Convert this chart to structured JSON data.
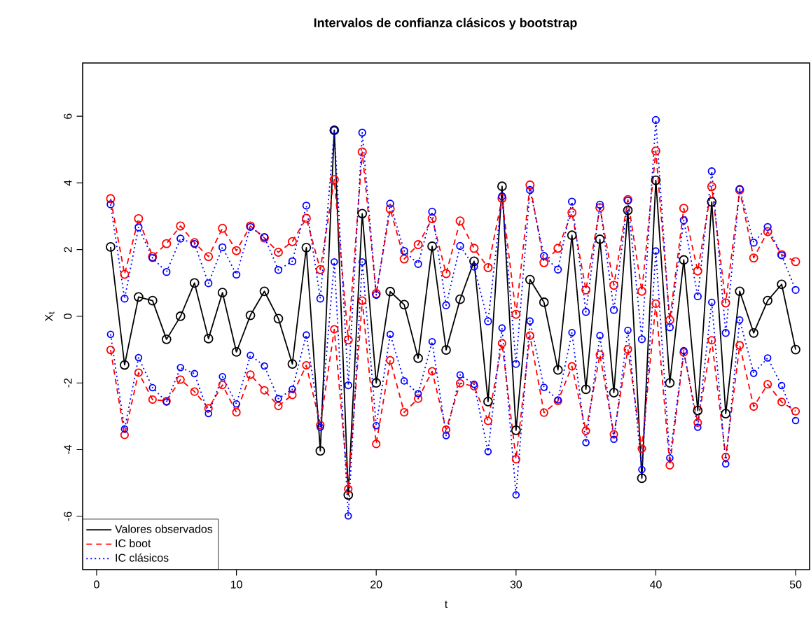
{
  "chart_data": {
    "type": "line",
    "title": "Intervalos de confianza clásicos y bootstrap",
    "xlabel": "t",
    "ylabel": "X$_{t}$",
    "x": [
      1,
      2,
      3,
      4,
      5,
      6,
      7,
      8,
      9,
      10,
      11,
      12,
      13,
      14,
      15,
      16,
      17,
      18,
      19,
      20,
      21,
      22,
      23,
      24,
      25,
      26,
      27,
      28,
      29,
      30,
      31,
      32,
      33,
      34,
      35,
      36,
      37,
      38,
      39,
      40,
      41,
      42,
      43,
      44,
      45,
      46,
      47,
      48,
      49,
      50
    ],
    "xlim": [
      -1,
      51
    ],
    "ylim": [
      -7.6,
      7.6
    ],
    "xticks": [
      0,
      10,
      20,
      30,
      40,
      50
    ],
    "yticks": [
      -6,
      -4,
      -2,
      0,
      2,
      4,
      6
    ],
    "grid": false,
    "legend": "bottom left",
    "marker": "circle",
    "series": [
      {
        "name": "Valores observados",
        "color": "#000000",
        "line_style": "solid",
        "values": [
          2.08,
          -1.46,
          0.58,
          0.47,
          -0.69,
          0,
          1.0,
          -0.67,
          0.71,
          -1.07,
          0.03,
          0.75,
          -0.07,
          -1.43,
          2.06,
          -4.04,
          5.58,
          -5.36,
          3.08,
          -2.0,
          0.74,
          0.35,
          -1.26,
          2.1,
          -1.01,
          0.51,
          1.65,
          -2.56,
          3.9,
          -3.42,
          1.1,
          0.42,
          -1.61,
          2.43,
          -2.19,
          2.31,
          -2.29,
          3.18,
          -4.86,
          4.08,
          -2.0,
          1.69,
          -2.83,
          3.43,
          -2.92,
          0.75,
          -0.5,
          0.47,
          0.96,
          -1.0
        ]
      },
      {
        "name": "IC boot",
        "color": "#ff0000",
        "line_style": "dashed",
        "values": [
          3.53,
          1.26,
          2.93,
          1.79,
          2.18,
          2.71,
          2.21,
          1.79,
          2.64,
          1.97,
          2.71,
          2.35,
          1.92,
          2.24,
          2.94,
          1.4,
          4.1,
          -0.71,
          4.93,
          0.68,
          3.22,
          1.72,
          2.15,
          2.93,
          1.28,
          2.86,
          2.04,
          1.46,
          3.54,
          0.06,
          3.94,
          1.61,
          2.04,
          3.11,
          0.79,
          3.26,
          0.93,
          3.5,
          0.75,
          4.96,
          -0.11,
          3.24,
          1.36,
          3.89,
          0.4,
          3.79,
          1.75,
          2.54,
          1.85,
          1.64
        ]
      },
      {
        "color": "#ff0000",
        "line_style": "dashed",
        "values": [
          -1.01,
          -3.56,
          -1.69,
          -2.5,
          -2.54,
          -1.9,
          -2.26,
          -2.76,
          -2.06,
          -2.88,
          -1.75,
          -2.22,
          -2.69,
          -2.36,
          -1.47,
          -3.26,
          -0.39,
          -5.18,
          0.47,
          -3.83,
          -1.32,
          -2.88,
          -2.47,
          -1.65,
          -3.4,
          -2.01,
          -2.1,
          -3.14,
          -0.81,
          -4.29,
          -0.58,
          -2.89,
          -2.54,
          -1.5,
          -3.44,
          -1.15,
          -3.54,
          -0.99,
          -3.97,
          0.38,
          -4.47,
          -1.08,
          -3.19,
          -0.72,
          -4.22,
          -0.87,
          -2.71,
          -2.04,
          -2.57,
          -2.85
        ]
      },
      {
        "name": "IC clásicos",
        "color": "#0000ff",
        "line_style": "dotted",
        "values": [
          3.36,
          0.53,
          2.67,
          1.75,
          1.33,
          2.33,
          2.17,
          0.99,
          2.07,
          1.25,
          2.68,
          2.38,
          1.39,
          1.65,
          3.32,
          0.53,
          5.58,
          -2.07,
          5.51,
          0.64,
          3.38,
          1.96,
          1.57,
          3.14,
          0.33,
          2.11,
          1.49,
          -0.15,
          3.6,
          -1.43,
          3.79,
          1.81,
          1.4,
          3.44,
          0.13,
          3.35,
          0.19,
          3.47,
          -0.69,
          5.89,
          -0.33,
          2.88,
          0.6,
          4.35,
          -0.5,
          3.82,
          2.21,
          2.68,
          1.83,
          0.79
        ]
      },
      {
        "color": "#0000ff",
        "line_style": "dotted",
        "values": [
          -0.54,
          -3.38,
          -1.24,
          -2.14,
          -2.57,
          -1.54,
          -1.72,
          -2.92,
          -1.81,
          -2.63,
          -1.17,
          -1.49,
          -2.47,
          -2.19,
          -0.56,
          -3.33,
          1.63,
          -5.99,
          1.63,
          -3.28,
          -0.54,
          -1.94,
          -2.32,
          -0.76,
          -3.58,
          -1.76,
          -2.04,
          -4.06,
          -0.35,
          -5.36,
          -0.14,
          -2.13,
          -2.51,
          -0.49,
          -3.79,
          -0.58,
          -3.69,
          -0.42,
          -4.6,
          1.96,
          -4.25,
          -1.03,
          -3.33,
          0.42,
          -4.43,
          -0.11,
          -1.71,
          -1.25,
          -2.08,
          -3.13
        ]
      }
    ]
  }
}
